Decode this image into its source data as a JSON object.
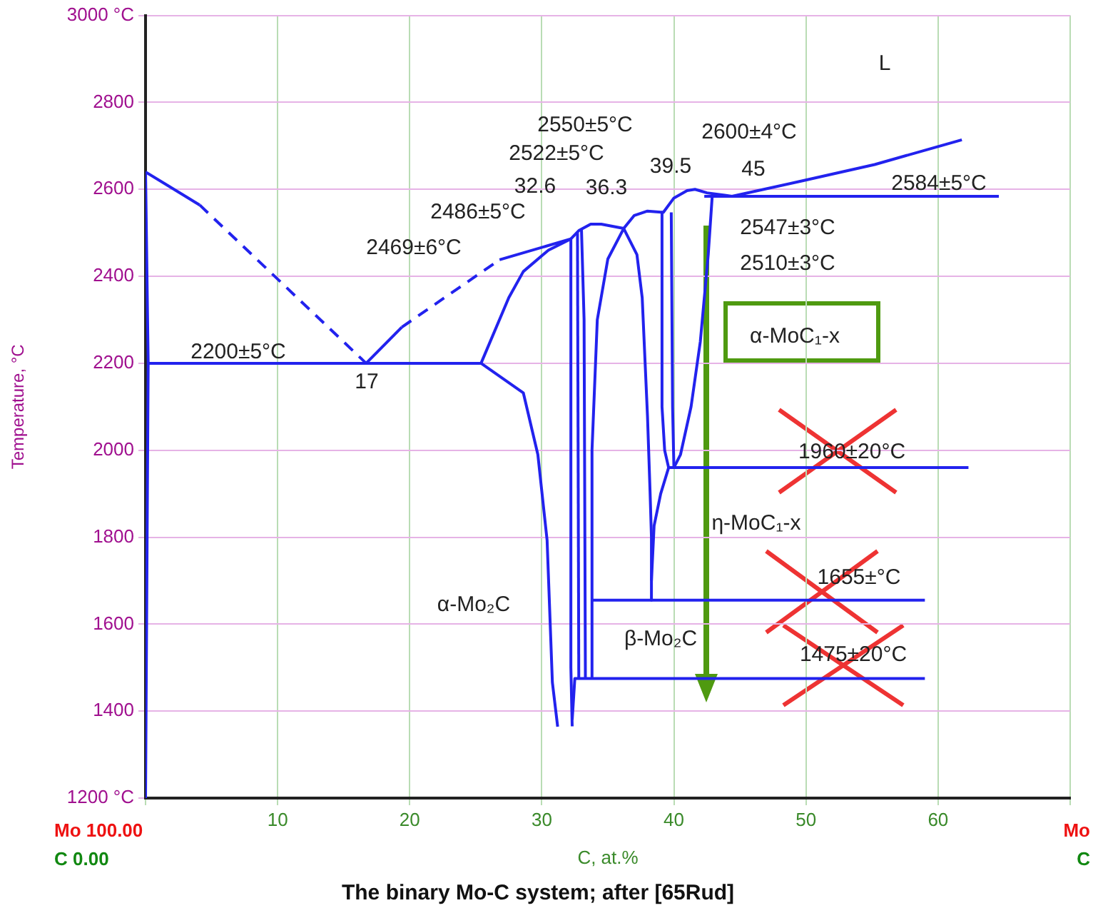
{
  "chart_data": {
    "type": "line",
    "title": "The binary Mo-C system; after [65Rud]",
    "xlabel": "C, at.%",
    "ylabel": "Temperature, °C",
    "xlim": [
      0,
      70
    ],
    "xticks": [
      {
        "value": 0,
        "label": null
      },
      10,
      20,
      30,
      40,
      50,
      60,
      {
        "value": 70,
        "label": null
      }
    ],
    "ylim": [
      1200,
      3000
    ],
    "yticks": [
      {
        "value": 3000,
        "label": "3000 °C"
      },
      2800,
      2600,
      2400,
      2200,
      2000,
      1800,
      1600,
      1400,
      {
        "value": 1200,
        "label": "1200 °C"
      }
    ],
    "grid": true,
    "legend": false,
    "marker": "none",
    "line_style": "solid",
    "series": [
      {
        "color": "#2222ee",
        "x": [
          0,
          0.2,
          0.1,
          0
        ],
        "values": [
          2640,
          2200,
          1700,
          1200
        ]
      },
      {
        "color": "#2222ee",
        "x": [
          0,
          4.1
        ],
        "values": [
          2640,
          2564
        ]
      },
      {
        "color": "#2222ee",
        "line_style": "dashed",
        "x": [
          4.1,
          16.7
        ],
        "values": [
          2564,
          2200
        ]
      },
      {
        "color": "#2222ee",
        "x": [
          16.7,
          19.4
        ],
        "values": [
          2200,
          2283
        ]
      },
      {
        "color": "#2222ee",
        "line_style": "dashed",
        "x": [
          19.4,
          26.8
        ],
        "values": [
          2283,
          2438
        ]
      },
      {
        "color": "#2222ee",
        "x": [
          0.2,
          25.4
        ],
        "values": [
          2200,
          2200
        ]
      },
      {
        "color": "#2222ee",
        "x": [
          26.8,
          32.2,
          30.5,
          28.6,
          27.5,
          25.4,
          28.6,
          29.7,
          30.4,
          30.8,
          31.2
        ],
        "values": [
          2438,
          2486,
          2460,
          2411,
          2351,
          2200,
          2132,
          1990,
          1793,
          1466,
          1364
        ]
      },
      {
        "color": "#2222ee",
        "x": [
          32.3,
          32.5,
          59.0
        ],
        "values": [
          1380,
          1475,
          1475
        ]
      },
      {
        "color": "#2222ee",
        "x": [
          32.7,
          32.8
        ],
        "values": [
          2500,
          1475
        ]
      },
      {
        "color": "#2222ee",
        "x": [
          33.0,
          33.2,
          33.3
        ],
        "values": [
          2510,
          2300,
          1475
        ]
      },
      {
        "color": "#2222ee",
        "x": [
          33.8,
          33.8,
          34.2,
          35.0,
          36.2,
          37.2,
          37.6,
          38.0,
          38.2,
          38.3,
          38.3
        ],
        "values": [
          1475,
          2000,
          2300,
          2440,
          2510,
          2450,
          2351,
          2079,
          1900,
          1800,
          1655
        ]
      },
      {
        "color": "#2222ee",
        "x": [
          33.8,
          59.0
        ],
        "values": [
          1655,
          1655
        ]
      },
      {
        "color": "#2222ee",
        "x": [
          32.3,
          32.2,
          32.2,
          32.8,
          33.7,
          34.5,
          36.2,
          37.0,
          38.0,
          39.2,
          40.0,
          41.0,
          41.6,
          42.5,
          44.4,
          49.8,
          55.2,
          61.8
        ],
        "values": [
          1365,
          1500,
          2486,
          2505,
          2520,
          2520,
          2510,
          2540,
          2550,
          2547,
          2580,
          2597,
          2600,
          2592,
          2584,
          2620,
          2657,
          2714
        ]
      },
      {
        "color": "#2222ee",
        "x": [
          42.3,
          64.6
        ],
        "values": [
          2584,
          2584
        ]
      },
      {
        "color": "#2222ee",
        "x": [
          39.6,
          39.0,
          38.5,
          38.3
        ],
        "values": [
          1960,
          1900,
          1826,
          1700
        ]
      },
      {
        "color": "#2222ee",
        "x": [
          39.1,
          39.1,
          39.3,
          39.6
        ],
        "values": [
          2547,
          2100,
          2000,
          1960
        ]
      },
      {
        "color": "#2222ee",
        "x": [
          39.8,
          39.9,
          40.0
        ],
        "values": [
          2547,
          2100,
          1960
        ]
      },
      {
        "color": "#2222ee",
        "x": [
          42.9,
          42.6,
          42.0,
          41.3,
          40.5,
          40.0
        ],
        "values": [
          2584,
          2450,
          2250,
          2100,
          1990,
          1960
        ]
      },
      {
        "color": "#2222ee",
        "x": [
          39.6,
          62.3
        ],
        "values": [
          1960,
          1960
        ]
      }
    ],
    "annotations": [
      "2200±5°C",
      "17",
      "2469±6°C",
      "2486±5°C",
      "32.6",
      "2522±5°C",
      "2550±5°C",
      "36.3",
      "39.5",
      "2600±4°C",
      "45",
      "2584±5°C",
      "2547±3°C",
      "2510±3°C",
      "α-MoC₁-x",
      "1960±20°C",
      "η-MoC₁-x",
      "1655±°C",
      "α-Mo₂C",
      "β-Mo₂C",
      "1475±20°C",
      "L",
      "Mo 100.00",
      "C 0.00",
      "Mo",
      "C"
    ]
  }
}
